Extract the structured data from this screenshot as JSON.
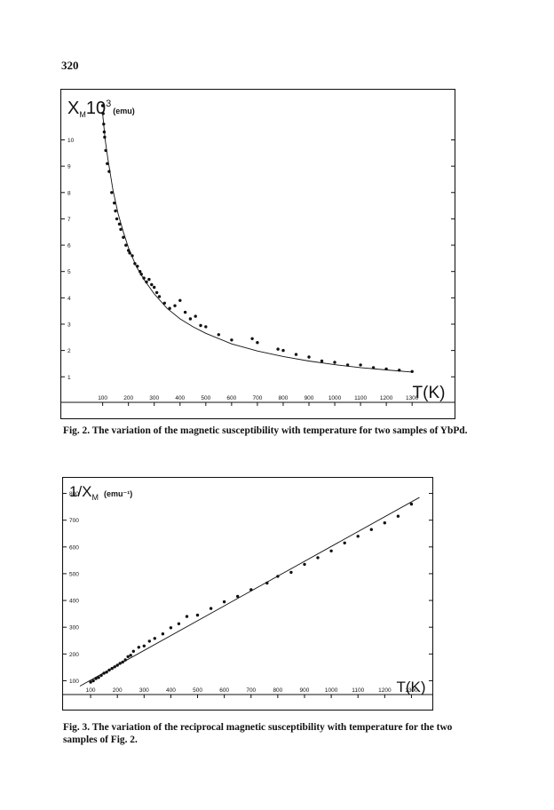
{
  "page_number": "320",
  "figures": [
    {
      "ylabel_main": "X",
      "ylabel_sub": "M",
      "ylabel_rest": "10",
      "ylabel_sup": "3",
      "ylabel_unit": "(emu)",
      "xlabel": "T(K)",
      "caption": "Fig. 2. The variation of the magnetic susceptibility with temperature for two samples of YbPd."
    },
    {
      "ylabel_main": "1/X",
      "ylabel_sub": "M",
      "ylabel_unit": "(emu⁻¹)",
      "xlabel": "T(K)",
      "caption": "Fig. 3. The variation of the reciprocal magnetic susceptibility with temperature for the two samples of Fig. 2."
    }
  ],
  "chart_data": [
    {
      "type": "scatter",
      "title": "",
      "xlabel": "T(K)",
      "ylabel": "X_M 10^3 (emu)",
      "xlim": [
        60,
        1320
      ],
      "ylim": [
        0.3,
        11.4
      ],
      "xticks": [
        100,
        200,
        300,
        400,
        500,
        600,
        700,
        800,
        900,
        1000,
        1100,
        1200,
        1300
      ],
      "yticks": [
        1,
        2,
        3,
        4,
        5,
        6,
        7,
        8,
        9,
        10
      ],
      "grid": false,
      "fit_curve": {
        "x": [
          100,
          110,
          120,
          140,
          160,
          180,
          200,
          230,
          260,
          300,
          350,
          400,
          450,
          500,
          600,
          700,
          800,
          900,
          1000,
          1100,
          1200,
          1300
        ],
        "y": [
          11.0,
          10.0,
          9.3,
          8.1,
          7.2,
          6.5,
          5.9,
          5.2,
          4.7,
          4.15,
          3.6,
          3.2,
          2.9,
          2.65,
          2.25,
          1.98,
          1.77,
          1.6,
          1.46,
          1.35,
          1.26,
          1.18
        ]
      },
      "series": [
        {
          "x": [
            100,
            102,
            104,
            106,
            108,
            112,
            118,
            125,
            135,
            145,
            150,
            155,
            165,
            170,
            180,
            190,
            200,
            205,
            215,
            225,
            235,
            245,
            250,
            260,
            270,
            280,
            290,
            300,
            310,
            320,
            340,
            360,
            380,
            400,
            420,
            440,
            460,
            480,
            500,
            550,
            600,
            680,
            700,
            780,
            800,
            850,
            900,
            950,
            1000,
            1050,
            1100,
            1150,
            1200,
            1250,
            1300
          ],
          "y": [
            11.3,
            11.0,
            10.6,
            10.3,
            10.1,
            9.6,
            9.1,
            8.8,
            8.0,
            7.6,
            7.3,
            7.0,
            6.8,
            6.6,
            6.3,
            6.0,
            5.8,
            5.7,
            5.6,
            5.3,
            5.2,
            5.0,
            4.9,
            4.75,
            4.6,
            4.7,
            4.5,
            4.4,
            4.2,
            4.05,
            3.8,
            3.6,
            3.7,
            3.9,
            3.45,
            3.2,
            3.3,
            2.95,
            2.9,
            2.6,
            2.4,
            2.45,
            2.3,
            2.05,
            2.0,
            1.85,
            1.75,
            1.6,
            1.55,
            1.45,
            1.45,
            1.35,
            1.3,
            1.25,
            1.2
          ]
        }
      ]
    },
    {
      "type": "scatter",
      "title": "",
      "xlabel": "T(K)",
      "ylabel": "1/X_M (emu^-1)",
      "xlim": [
        40,
        1345
      ],
      "ylim": [
        65,
        835
      ],
      "xticks": [
        100,
        200,
        300,
        400,
        500,
        600,
        700,
        800,
        900,
        1000,
        1100,
        1200,
        1300
      ],
      "yticks": [
        100,
        200,
        300,
        400,
        500,
        600,
        700,
        800
      ],
      "grid": false,
      "fit_line": {
        "x": [
          60,
          1330
        ],
        "y": [
          80,
          785
        ]
      },
      "series": [
        {
          "x": [
            100,
            110,
            120,
            130,
            140,
            150,
            160,
            170,
            180,
            190,
            200,
            210,
            220,
            230,
            240,
            250,
            260,
            280,
            300,
            320,
            340,
            370,
            400,
            430,
            460,
            500,
            550,
            600,
            650,
            700,
            760,
            800,
            850,
            900,
            950,
            1000,
            1050,
            1100,
            1150,
            1200,
            1250,
            1300
          ],
          "y": [
            95,
            100,
            108,
            112,
            120,
            128,
            132,
            140,
            146,
            152,
            158,
            165,
            170,
            178,
            190,
            195,
            210,
            225,
            230,
            248,
            258,
            275,
            298,
            313,
            340,
            345,
            370,
            395,
            415,
            440,
            465,
            490,
            505,
            535,
            560,
            585,
            615,
            640,
            665,
            690,
            715,
            760
          ]
        }
      ]
    }
  ]
}
